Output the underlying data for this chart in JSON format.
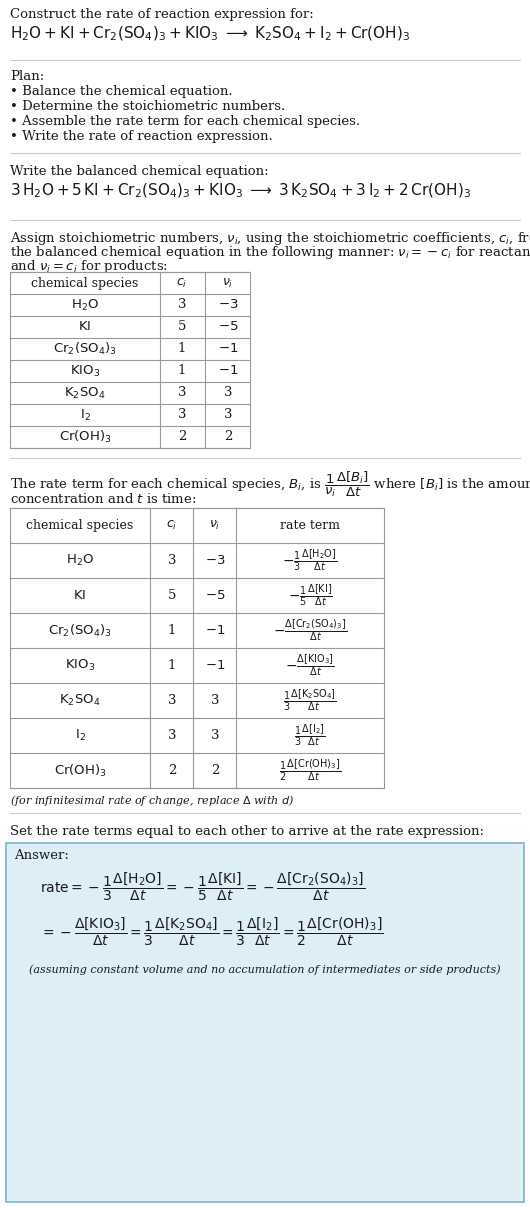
{
  "bg_color": "#ffffff",
  "answer_bg_color": "#ddeef6",
  "title_line1": "Construct the rate of reaction expression for:",
  "plan_header": "Plan:",
  "plan_items": [
    "• Balance the chemical equation.",
    "• Determine the stoichiometric numbers.",
    "• Assemble the rate term for each chemical species.",
    "• Write the rate of reaction expression."
  ],
  "balanced_header": "Write the balanced chemical equation:",
  "assign_text1": "Assign stoichiometric numbers, $\\nu_i$, using the stoichiometric coefficients, $c_i$, from",
  "assign_text2": "the balanced chemical equation in the following manner: $\\nu_i = -c_i$ for reactants",
  "assign_text3": "and $\\nu_i = c_i$ for products:",
  "table1_headers": [
    "chemical species",
    "$c_i$",
    "$\\nu_i$"
  ],
  "table1_species": [
    "$\\mathrm{H_2O}$",
    "$\\mathrm{KI}$",
    "$\\mathrm{Cr_2(SO_4)_3}$",
    "$\\mathrm{KIO_3}$",
    "$\\mathrm{K_2SO_4}$",
    "$\\mathrm{I_2}$",
    "$\\mathrm{Cr(OH)_3}$"
  ],
  "table1_ci": [
    "3",
    "5",
    "1",
    "1",
    "3",
    "3",
    "2"
  ],
  "table1_vi": [
    "$-3$",
    "$-5$",
    "$-1$",
    "$-1$",
    "3",
    "3",
    "2"
  ],
  "rate_text1": "The rate term for each chemical species, $B_i$, is $\\dfrac{1}{\\nu_i}\\dfrac{\\Delta[B_i]}{\\Delta t}$ where $[B_i]$ is the amount",
  "rate_text2": "concentration and $t$ is time:",
  "table2_headers": [
    "chemical species",
    "$c_i$",
    "$\\nu_i$",
    "rate term"
  ],
  "table2_species": [
    "$\\mathrm{H_2O}$",
    "$\\mathrm{KI}$",
    "$\\mathrm{Cr_2(SO_4)_3}$",
    "$\\mathrm{KIO_3}$",
    "$\\mathrm{K_2SO_4}$",
    "$\\mathrm{I_2}$",
    "$\\mathrm{Cr(OH)_3}$"
  ],
  "table2_ci": [
    "3",
    "5",
    "1",
    "1",
    "3",
    "3",
    "2"
  ],
  "table2_vi": [
    "$-3$",
    "$-5$",
    "$-1$",
    "$-1$",
    "3",
    "3",
    "2"
  ],
  "table2_rate": [
    "$-\\frac{1}{3}\\frac{\\Delta[\\mathrm{H_2O}]}{\\Delta t}$",
    "$-\\frac{1}{5}\\frac{\\Delta[\\mathrm{KI}]}{\\Delta t}$",
    "$-\\frac{\\Delta[\\mathrm{Cr_2(SO_4)_3}]}{\\Delta t}$",
    "$-\\frac{\\Delta[\\mathrm{KIO_3}]}{\\Delta t}$",
    "$\\frac{1}{3}\\frac{\\Delta[\\mathrm{K_2SO_4}]}{\\Delta t}$",
    "$\\frac{1}{3}\\frac{\\Delta[\\mathrm{I_2}]}{\\Delta t}$",
    "$\\frac{1}{2}\\frac{\\Delta[\\mathrm{Cr(OH)_3}]}{\\Delta t}$"
  ],
  "infinitesimal_note": "(for infinitesimal rate of change, replace $\\Delta$ with $d$)",
  "set_rate_text": "Set the rate terms equal to each other to arrive at the rate expression:",
  "answer_label": "Answer:",
  "text_color": "#1a1a1a",
  "table_border_color": "#999999",
  "line_color": "#cccccc",
  "answer_border_color": "#7ab3cc"
}
